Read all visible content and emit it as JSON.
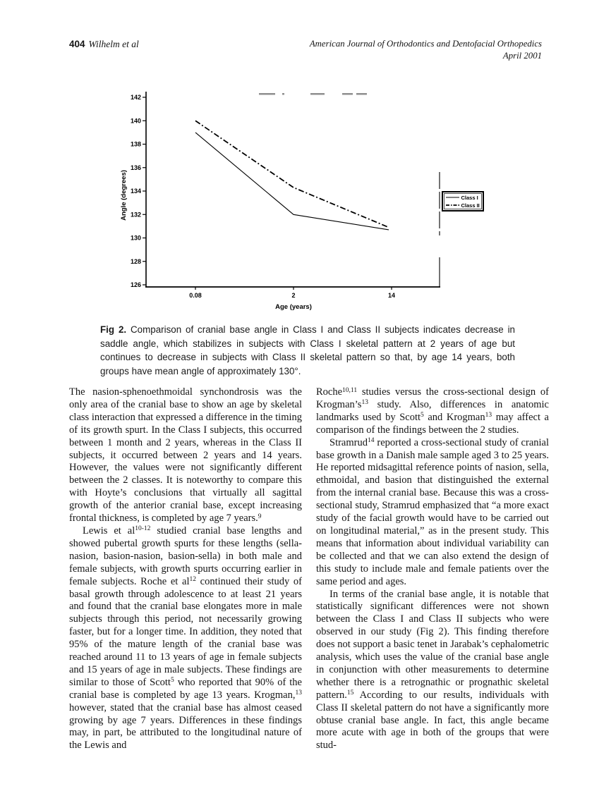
{
  "header": {
    "page_number": "404",
    "authors": "Wilhelm et al",
    "journal": "American Journal of Orthodontics and Dentofacial Orthopedics",
    "issue": "April 2001"
  },
  "figure": {
    "caption_label": "Fig 2.",
    "caption_text": "Comparison of cranial base angle in Class I and Class II subjects indicates decrease in saddle angle, which stabilizes in subjects with Class I skeletal pattern at 2 years of age but continues to decrease in subjects with Class II skeletal pattern so that, by age 14 years, both groups have mean angle of approximately 130°."
  },
  "chart_data": {
    "type": "line",
    "title_illegible": true,
    "x": [
      0.08,
      2,
      14
    ],
    "x_tick_labels": [
      "0.08",
      "2",
      "14"
    ],
    "xlabel": "Age (years)",
    "ylabel": "Angle (degrees)",
    "ylim": [
      126,
      142
    ],
    "y_ticks": [
      126,
      128,
      130,
      132,
      134,
      136,
      138,
      140,
      142
    ],
    "grid": false,
    "legend_position": "right",
    "series": [
      {
        "name": "Class I",
        "line_style": "solid",
        "values": [
          139,
          132,
          130.7
        ]
      },
      {
        "name": "Class II",
        "line_style": "dash-dot",
        "values": [
          140,
          134.3,
          130.9
        ]
      }
    ]
  },
  "columns": {
    "left": [
      {
        "indent": false,
        "segments": [
          {
            "t": "The nasion-sphenoethmoidal synchondrosis was the only area of the cranial base to show an age by skeletal class interaction that expressed a difference in the timing of its growth spurt. In the Class I subjects, this occurred between 1 month and 2 years, whereas in the Class II subjects, it occurred between 2 years and 14 years. However, the values were not significantly different between the 2 classes. It is noteworthy to compare this with Hoyte’s conclusions that virtually all sagittal growth of the anterior cranial base, except increasing frontal thickness, is completed by age 7 years."
          },
          {
            "sup": "9"
          }
        ]
      },
      {
        "indent": true,
        "segments": [
          {
            "t": "Lewis et al"
          },
          {
            "sup": "10-12"
          },
          {
            "t": " studied cranial base lengths and showed pubertal growth spurts for these lengths (sella-nasion, basion-nasion, basion-sella) in both male and female subjects, with growth spurts occurring earlier in female subjects. Roche et al"
          },
          {
            "sup": "12"
          },
          {
            "t": " continued their study of basal growth through adolescence to at least 21 years and found that the cranial base elongates more in male subjects through this period, not necessarily growing faster, but for a longer time. In addition, they noted that 95% of the mature length of the cranial base was reached around 11 to 13 years of age in female subjects and 15 years of age in male subjects. These findings are similar to those of Scott"
          },
          {
            "sup": "5"
          },
          {
            "t": " who reported that 90% of the cranial base is completed by age 13 years. Krogman,"
          },
          {
            "sup": "13"
          },
          {
            "t": " however, stated that the cranial base has almost ceased growing by age 7 years. Differences in these findings may, in part, be attributed to the longitudinal nature of the Lewis and"
          }
        ]
      }
    ],
    "right": [
      {
        "indent": false,
        "segments": [
          {
            "t": "Roche"
          },
          {
            "sup": "10,11"
          },
          {
            "t": " studies versus the cross-sectional design of Krogman’s"
          },
          {
            "sup": "13"
          },
          {
            "t": " study. Also, differences in anatomic landmarks used by Scott"
          },
          {
            "sup": "5"
          },
          {
            "t": " and Krogman"
          },
          {
            "sup": "13"
          },
          {
            "t": " may affect a comparison of the findings between the 2 studies."
          }
        ]
      },
      {
        "indent": true,
        "segments": [
          {
            "t": "Stramrud"
          },
          {
            "sup": "14"
          },
          {
            "t": " reported a cross-sectional study of cranial base growth in a Danish male sample aged 3 to 25 years. He reported midsagittal reference points of nasion, sella, ethmoidal, and basion that distinguished the external from the internal cranial base. Because this was a cross-sectional study, Stramrud emphasized that “a more exact study of the facial growth would have to be carried out on longitudinal material,” as in the present study. This means that information about individual variability can be collected and that we can also extend the design of this study to include male and female patients over the same period and ages."
          }
        ]
      },
      {
        "indent": true,
        "segments": [
          {
            "t": "In terms of the cranial base angle, it is notable that statistically significant differences were not shown between the Class I and Class II subjects who were observed in our study (Fig 2). This finding therefore does not support a basic tenet in Jarabak’s cephalometric analysis, which uses the value of the cranial base angle in conjunction with other measurements to determine whether there is a retrognathic or prognathic skeletal pattern."
          },
          {
            "sup": "15"
          },
          {
            "t": " According to our results, individuals with Class II skeletal pattern do not have a significantly more obtuse cranial base angle. In fact, this angle became more acute with age in both of the groups that were stud-"
          }
        ]
      }
    ]
  }
}
